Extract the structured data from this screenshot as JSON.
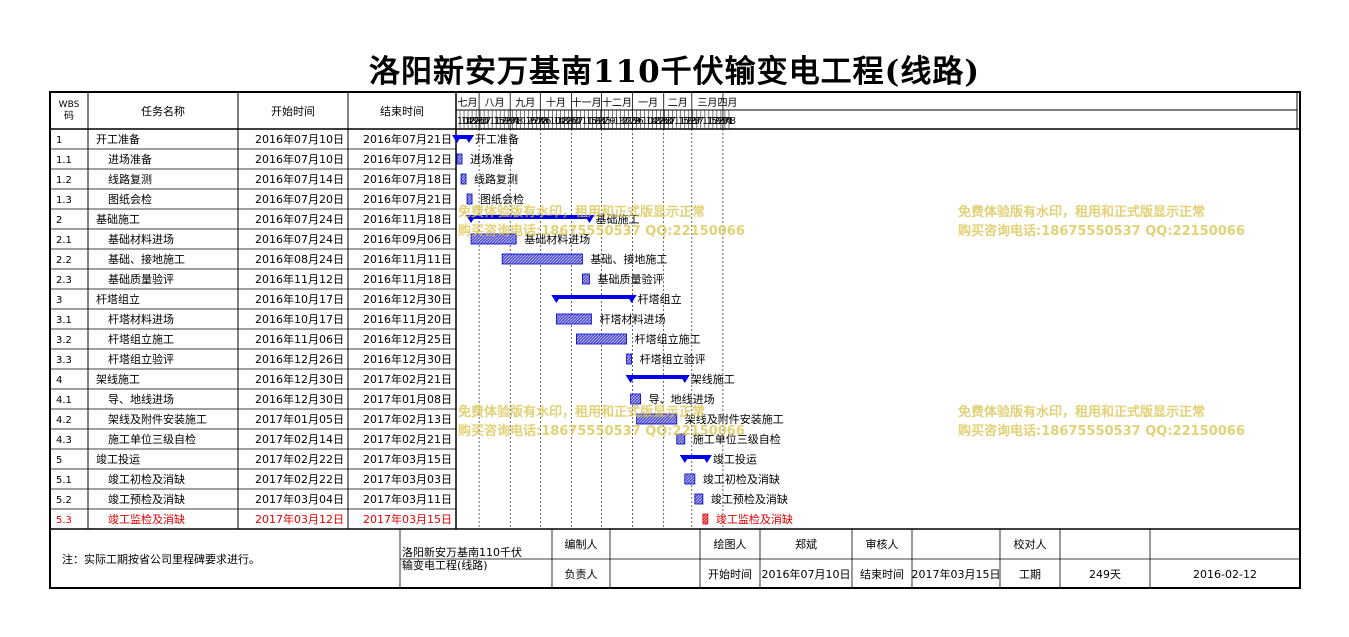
{
  "title": "洛阳新安万基南110千伏输变电工程(线路)",
  "header": {
    "wbs": "WBS码",
    "name": "任务名称",
    "start": "开始时间",
    "end": "结束时间"
  },
  "months": [
    "七月",
    "八月",
    "九月",
    "十月",
    "十一月",
    "十二月",
    "一月",
    "二月",
    "三月",
    "四月"
  ],
  "days": [
    {
      "d": "10",
      "date": "2016-07-10"
    },
    {
      "d": "14",
      "date": "2016-07-14"
    },
    {
      "d": "18",
      "date": "2016-07-18"
    },
    {
      "d": "22",
      "date": "2016-07-22"
    },
    {
      "d": "26",
      "date": "2016-07-26"
    },
    {
      "d": "30",
      "date": "2016-07-30"
    },
    {
      "d": "3",
      "date": "2016-08-03"
    },
    {
      "d": "7",
      "date": "2016-08-07"
    },
    {
      "d": "11",
      "date": "2016-08-11"
    },
    {
      "d": "15",
      "date": "2016-08-15"
    },
    {
      "d": "19",
      "date": "2016-08-19"
    },
    {
      "d": "23",
      "date": "2016-08-23"
    },
    {
      "d": "27",
      "date": "2016-08-27"
    },
    {
      "d": "31",
      "date": "2016-08-31"
    },
    {
      "d": "4",
      "date": "2016-09-04"
    },
    {
      "d": "8",
      "date": "2016-09-08"
    },
    {
      "d": "12",
      "date": "2016-09-12"
    },
    {
      "d": "16",
      "date": "2016-09-16"
    },
    {
      "d": "20",
      "date": "2016-09-20"
    },
    {
      "d": "24",
      "date": "2016-09-24"
    },
    {
      "d": "28",
      "date": "2016-09-28"
    },
    {
      "d": "2",
      "date": "2016-10-02"
    },
    {
      "d": "6",
      "date": "2016-10-06"
    },
    {
      "d": "10",
      "date": "2016-10-10"
    },
    {
      "d": "14",
      "date": "2016-10-14"
    },
    {
      "d": "18",
      "date": "2016-10-18"
    },
    {
      "d": "22",
      "date": "2016-10-22"
    },
    {
      "d": "26",
      "date": "2016-10-26"
    },
    {
      "d": "30",
      "date": "2016-10-30"
    },
    {
      "d": "3",
      "date": "2016-11-03"
    },
    {
      "d": "7",
      "date": "2016-11-07"
    },
    {
      "d": "11",
      "date": "2016-11-11"
    },
    {
      "d": "15",
      "date": "2016-11-15"
    },
    {
      "d": "19",
      "date": "2016-11-19"
    },
    {
      "d": "23",
      "date": "2016-11-23"
    },
    {
      "d": "27",
      "date": "2016-11-27"
    },
    {
      "d": "1",
      "date": "2016-12-01"
    },
    {
      "d": "5",
      "date": "2016-12-05"
    },
    {
      "d": "9",
      "date": "2016-12-09"
    },
    {
      "d": "13",
      "date": "2016-12-13"
    },
    {
      "d": "17",
      "date": "2016-12-17"
    },
    {
      "d": "21",
      "date": "2016-12-21"
    },
    {
      "d": "25",
      "date": "2016-12-25"
    },
    {
      "d": "29",
      "date": "2016-12-29"
    },
    {
      "d": "2",
      "date": "2017-01-02"
    },
    {
      "d": "6",
      "date": "2017-01-06"
    },
    {
      "d": "10",
      "date": "2017-01-10"
    },
    {
      "d": "14",
      "date": "2017-01-14"
    },
    {
      "d": "18",
      "date": "2017-01-18"
    },
    {
      "d": "22",
      "date": "2017-01-22"
    },
    {
      "d": "26",
      "date": "2017-01-26"
    },
    {
      "d": "30",
      "date": "2017-01-30"
    },
    {
      "d": "3",
      "date": "2017-02-03"
    },
    {
      "d": "7",
      "date": "2017-02-07"
    },
    {
      "d": "11",
      "date": "2017-02-11"
    },
    {
      "d": "15",
      "date": "2017-02-15"
    },
    {
      "d": "19",
      "date": "2017-02-19"
    },
    {
      "d": "23",
      "date": "2017-02-23"
    },
    {
      "d": "27",
      "date": "2017-02-27"
    },
    {
      "d": "3",
      "date": "2017-03-03"
    },
    {
      "d": "7",
      "date": "2017-03-07"
    },
    {
      "d": "11",
      "date": "2017-03-11"
    },
    {
      "d": "15",
      "date": "2017-03-15"
    },
    {
      "d": "19",
      "date": "2017-03-19"
    },
    {
      "d": "23",
      "date": "2017-03-23"
    },
    {
      "d": "27",
      "date": "2017-03-27"
    },
    {
      "d": "31",
      "date": "2017-03-31"
    },
    {
      "d": "4",
      "date": "2017-04-04"
    },
    {
      "d": "8",
      "date": "2017-04-08"
    }
  ],
  "tasks": [
    {
      "wbs": "1",
      "name": "开工准备",
      "start": "2016年07月10日",
      "end": "2016年07月21日",
      "s": "2016-07-10",
      "e": "2016-07-21",
      "summary": true,
      "level": 1
    },
    {
      "wbs": "1.1",
      "name": "进场准备",
      "start": "2016年07月10日",
      "end": "2016年07月12日",
      "s": "2016-07-10",
      "e": "2016-07-12",
      "summary": false,
      "level": 2
    },
    {
      "wbs": "1.2",
      "name": "线路复测",
      "start": "2016年07月14日",
      "end": "2016年07月18日",
      "s": "2016-07-14",
      "e": "2016-07-18",
      "summary": false,
      "level": 2
    },
    {
      "wbs": "1.3",
      "name": "图纸会检",
      "start": "2016年07月20日",
      "end": "2016年07月21日",
      "s": "2016-07-20",
      "e": "2016-07-21",
      "summary": false,
      "level": 2
    },
    {
      "wbs": "2",
      "name": "基础施工",
      "start": "2016年07月24日",
      "end": "2016年11月18日",
      "s": "2016-07-24",
      "e": "2016-11-18",
      "summary": true,
      "level": 1
    },
    {
      "wbs": "2.1",
      "name": "基础材料进场",
      "start": "2016年07月24日",
      "end": "2016年09月06日",
      "s": "2016-07-24",
      "e": "2016-09-06",
      "summary": false,
      "level": 2
    },
    {
      "wbs": "2.2",
      "name": "基础、接地施工",
      "start": "2016年08月24日",
      "end": "2016年11月11日",
      "s": "2016-08-24",
      "e": "2016-11-11",
      "summary": false,
      "level": 2
    },
    {
      "wbs": "2.3",
      "name": "基础质量验评",
      "start": "2016年11月12日",
      "end": "2016年11月18日",
      "s": "2016-11-12",
      "e": "2016-11-18",
      "summary": false,
      "level": 2
    },
    {
      "wbs": "3",
      "name": "杆塔组立",
      "start": "2016年10月17日",
      "end": "2016年12月30日",
      "s": "2016-10-17",
      "e": "2016-12-30",
      "summary": true,
      "level": 1
    },
    {
      "wbs": "3.1",
      "name": "杆塔材料进场",
      "start": "2016年10月17日",
      "end": "2016年11月20日",
      "s": "2016-10-17",
      "e": "2016-11-20",
      "summary": false,
      "level": 2
    },
    {
      "wbs": "3.2",
      "name": "杆塔组立施工",
      "start": "2016年11月06日",
      "end": "2016年12月25日",
      "s": "2016-11-06",
      "e": "2016-12-25",
      "summary": false,
      "level": 2
    },
    {
      "wbs": "3.3",
      "name": "杆塔组立验评",
      "start": "2016年12月26日",
      "end": "2016年12月30日",
      "s": "2016-12-26",
      "e": "2016-12-30",
      "summary": false,
      "level": 2
    },
    {
      "wbs": "4",
      "name": "架线施工",
      "start": "2016年12月30日",
      "end": "2017年02月21日",
      "s": "2016-12-30",
      "e": "2017-02-21",
      "summary": true,
      "level": 1
    },
    {
      "wbs": "4.1",
      "name": "导、地线进场",
      "start": "2016年12月30日",
      "end": "2017年01月08日",
      "s": "2016-12-30",
      "e": "2017-01-08",
      "summary": false,
      "level": 2
    },
    {
      "wbs": "4.2",
      "name": "架线及附件安装施工",
      "start": "2017年01月05日",
      "end": "2017年02月13日",
      "s": "2017-01-05",
      "e": "2017-02-13",
      "summary": false,
      "level": 2
    },
    {
      "wbs": "4.3",
      "name": "施工单位三级自检",
      "start": "2017年02月14日",
      "end": "2017年02月21日",
      "s": "2017-02-14",
      "e": "2017-02-21",
      "summary": false,
      "level": 2
    },
    {
      "wbs": "5",
      "name": "竣工投运",
      "start": "2017年02月22日",
      "end": "2017年03月15日",
      "s": "2017-02-22",
      "e": "2017-03-15",
      "summary": true,
      "level": 1
    },
    {
      "wbs": "5.1",
      "name": "竣工初检及消缺",
      "start": "2017年02月22日",
      "end": "2017年03月03日",
      "s": "2017-02-22",
      "e": "2017-03-03",
      "summary": false,
      "level": 2
    },
    {
      "wbs": "5.2",
      "name": "竣工预检及消缺",
      "start": "2017年03月04日",
      "end": "2017年03月11日",
      "s": "2017-03-04",
      "e": "2017-03-11",
      "summary": false,
      "level": 2
    },
    {
      "wbs": "5.3",
      "name": "竣工监检及消缺",
      "start": "2017年03月12日",
      "end": "2017年03月15日",
      "s": "2017-03-12",
      "e": "2017-03-15",
      "summary": false,
      "level": 2,
      "critical": true
    }
  ],
  "watermark": {
    "line1": "免费体验版有水印，租用和正式版显示正常",
    "line2": "购买咨询电话:18675550537 QQ:22150066"
  },
  "footer": {
    "note": "注：实际工期按省公司里程碑要求进行。",
    "project": "洛阳新安万基南110千伏输变电工程(线路)",
    "compiler_label": "编制人",
    "compiler": "",
    "drawer_label": "绘图人",
    "drawer": "郑斌",
    "reviewer_label": "审核人",
    "reviewer": "",
    "checker_label": "校对人",
    "checker": "",
    "owner_label": "负责人",
    "owner": "",
    "start_label": "开始时间",
    "start": "2016年07月10日",
    "end_label": "结束时间",
    "end": "2017年03月15日",
    "duration_label": "工期",
    "duration": "249天",
    "date": "2016-02-12"
  },
  "colors": {
    "bar": "#0000cc",
    "bar_fill": "#6b6bd6",
    "critical": "#e00000",
    "summary": "#0000ee"
  }
}
